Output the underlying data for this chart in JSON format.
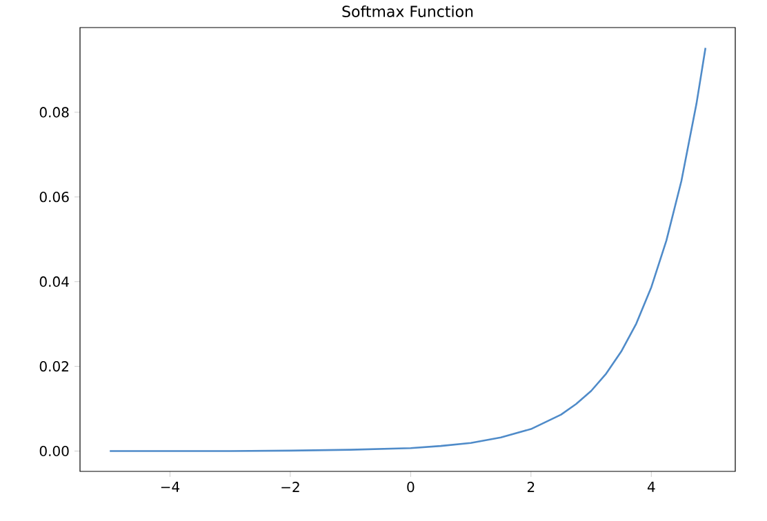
{
  "chart_data": {
    "type": "line",
    "title": "Softmax Function",
    "x": [
      -5,
      -4,
      -3,
      -2,
      -1,
      0,
      0.5,
      1,
      1.5,
      2,
      2.5,
      2.75,
      3,
      3.25,
      3.5,
      3.75,
      4,
      4.25,
      4.5,
      4.75,
      4.9
    ],
    "series": [
      {
        "color": "#4f8bc9",
        "values": [
          0.0,
          0.0,
          0.0,
          0.0001,
          0.0003,
          0.0007,
          0.0012,
          0.0019,
          0.0032,
          0.0052,
          0.0086,
          0.0111,
          0.0142,
          0.0183,
          0.0235,
          0.0301,
          0.0387,
          0.0497,
          0.0638,
          0.082,
          0.0952
        ]
      }
    ],
    "xlim": [
      -5.495,
      5.395
    ],
    "ylim": [
      -0.0048,
      0.1
    ],
    "xticks": [
      {
        "value": -4,
        "label": "−4"
      },
      {
        "value": -2,
        "label": "−2"
      },
      0,
      2,
      4
    ],
    "yticks": [
      {
        "value": 0,
        "label": "0.00"
      },
      {
        "value": 0.02,
        "label": "0.02"
      },
      {
        "value": 0.04,
        "label": "0.04"
      },
      {
        "value": 0.06,
        "label": "0.06"
      },
      {
        "value": 0.08,
        "label": "0.08"
      }
    ],
    "grid": false
  }
}
